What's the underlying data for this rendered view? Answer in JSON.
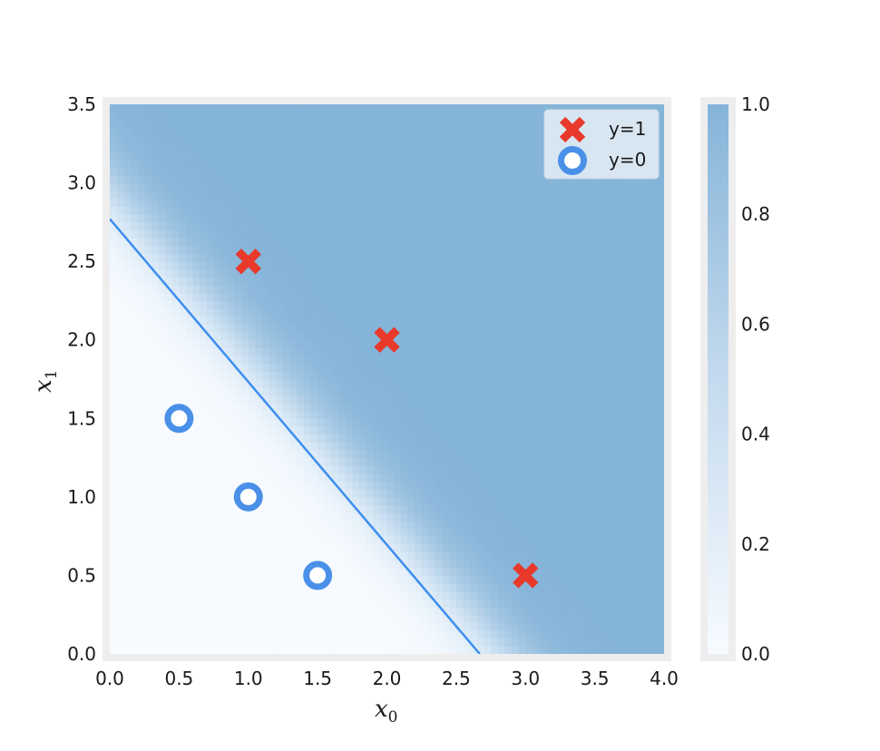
{
  "chart_data": {
    "type": "scatter",
    "title": "",
    "xlabel": "x",
    "xlabel_sub": "0",
    "ylabel": "x",
    "ylabel_sub": "1",
    "xlim": [
      0,
      4
    ],
    "ylim": [
      0,
      3.5
    ],
    "x_ticks": [
      "0.0",
      "0.5",
      "1.0",
      "1.5",
      "2.0",
      "2.5",
      "3.0",
      "3.5",
      "4.0"
    ],
    "y_ticks": [
      "0.0",
      "0.5",
      "1.0",
      "1.5",
      "2.0",
      "2.5",
      "3.0",
      "3.5"
    ],
    "grid": false,
    "legend_position": "top-right",
    "series": [
      {
        "name": "y=1",
        "marker": "x",
        "color": "#e8392b",
        "points": [
          [
            1.0,
            2.5
          ],
          [
            2.0,
            2.0
          ],
          [
            3.0,
            0.5
          ]
        ]
      },
      {
        "name": "y=0",
        "marker": "o",
        "color": "#4a90e8",
        "points": [
          [
            0.5,
            1.5
          ],
          [
            1.0,
            1.0
          ],
          [
            1.5,
            0.5
          ]
        ]
      }
    ],
    "decision_boundary": {
      "color": "#3d8ef0",
      "x": [
        0.0,
        2.67
      ],
      "y": [
        2.77,
        0.0
      ]
    },
    "probability_background": {
      "colormap": "Blues",
      "low_color": "#f7fbff",
      "high_color": "#85b4d9",
      "vmin": 0,
      "vmax": 1,
      "description": "sigmoid of linear model"
    },
    "colorbar": {
      "ticks": [
        "0.0",
        "0.2",
        "0.4",
        "0.6",
        "0.8",
        "1.0"
      ],
      "range": [
        0,
        1
      ]
    }
  }
}
